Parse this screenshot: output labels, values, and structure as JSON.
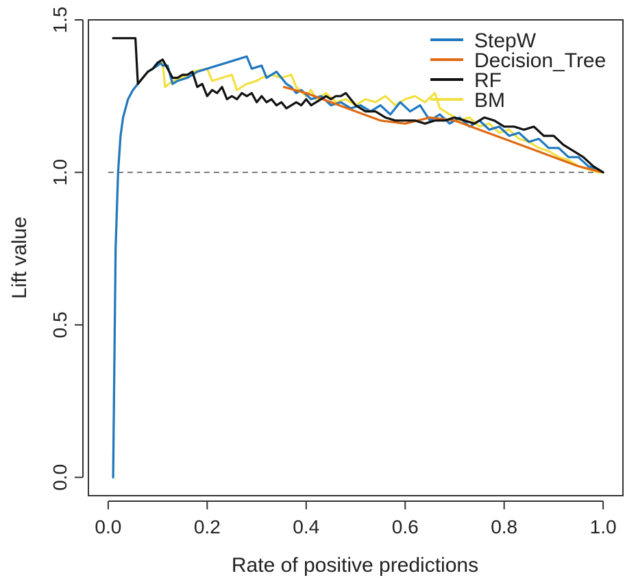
{
  "chart_data": {
    "type": "line",
    "title": "",
    "xlabel": "Rate of positive predictions",
    "ylabel": "Lift value",
    "xlim": [
      -0.04,
      1.04
    ],
    "ylim": [
      -0.06,
      1.5
    ],
    "xticks": [
      "0.0",
      "0.2",
      "0.4",
      "0.6",
      "0.8",
      "1.0"
    ],
    "yticks": [
      "0.0",
      "0.5",
      "1.0",
      "1.5"
    ],
    "legend_position": "top-right",
    "reference_line": {
      "y": 1.0,
      "style": "dashed",
      "color": "#555555"
    },
    "series": [
      {
        "name": "StepW",
        "color": "#1f78c1",
        "x": [
          0.01,
          0.015,
          0.02,
          0.025,
          0.03,
          0.04,
          0.05,
          0.06,
          0.07,
          0.08,
          0.09,
          0.1,
          0.105,
          0.11,
          0.12,
          0.13,
          0.14,
          0.16,
          0.18,
          0.2,
          0.22,
          0.24,
          0.26,
          0.28,
          0.29,
          0.31,
          0.32,
          0.34,
          0.36,
          0.37,
          0.38,
          0.39,
          0.41,
          0.43,
          0.45,
          0.47,
          0.49,
          0.51,
          0.53,
          0.55,
          0.57,
          0.59,
          0.61,
          0.63,
          0.65,
          0.67,
          0.69,
          0.71,
          0.73,
          0.75,
          0.77,
          0.79,
          0.81,
          0.83,
          0.85,
          0.87,
          0.89,
          0.91,
          0.93,
          0.95,
          0.97,
          0.99,
          1.0
        ],
        "values": [
          0.0,
          0.75,
          1.0,
          1.12,
          1.18,
          1.24,
          1.27,
          1.29,
          1.31,
          1.33,
          1.34,
          1.35,
          1.36,
          1.35,
          1.35,
          1.29,
          1.3,
          1.31,
          1.33,
          1.34,
          1.35,
          1.36,
          1.37,
          1.38,
          1.34,
          1.35,
          1.31,
          1.33,
          1.29,
          1.28,
          1.26,
          1.27,
          1.24,
          1.25,
          1.22,
          1.23,
          1.21,
          1.22,
          1.2,
          1.22,
          1.19,
          1.23,
          1.2,
          1.22,
          1.17,
          1.19,
          1.16,
          1.18,
          1.15,
          1.17,
          1.14,
          1.15,
          1.12,
          1.13,
          1.1,
          1.11,
          1.08,
          1.08,
          1.05,
          1.05,
          1.02,
          1.01,
          1.0
        ]
      },
      {
        "name": "Decision_Tree",
        "color": "#e06a14",
        "x": [
          0.355,
          0.4,
          0.45,
          0.5,
          0.55,
          0.6,
          0.65,
          0.7,
          0.75,
          0.8,
          0.85,
          0.9,
          0.95,
          1.0
        ],
        "values": [
          1.28,
          1.26,
          1.23,
          1.2,
          1.17,
          1.16,
          1.18,
          1.17,
          1.14,
          1.11,
          1.08,
          1.05,
          1.02,
          1.0
        ]
      },
      {
        "name": "RF",
        "color": "#111111",
        "x": [
          0.01,
          0.055,
          0.06,
          0.07,
          0.08,
          0.09,
          0.1,
          0.11,
          0.12,
          0.13,
          0.14,
          0.15,
          0.16,
          0.17,
          0.18,
          0.19,
          0.2,
          0.21,
          0.22,
          0.23,
          0.24,
          0.25,
          0.26,
          0.27,
          0.28,
          0.29,
          0.3,
          0.31,
          0.32,
          0.33,
          0.34,
          0.35,
          0.36,
          0.37,
          0.38,
          0.39,
          0.4,
          0.41,
          0.42,
          0.43,
          0.44,
          0.45,
          0.46,
          0.47,
          0.48,
          0.5,
          0.52,
          0.54,
          0.56,
          0.58,
          0.6,
          0.62,
          0.64,
          0.66,
          0.68,
          0.7,
          0.72,
          0.74,
          0.76,
          0.78,
          0.8,
          0.82,
          0.84,
          0.86,
          0.88,
          0.9,
          0.92,
          0.94,
          0.96,
          0.98,
          1.0
        ],
        "values": [
          1.44,
          1.44,
          1.29,
          1.31,
          1.33,
          1.34,
          1.36,
          1.37,
          1.34,
          1.31,
          1.31,
          1.32,
          1.32,
          1.33,
          1.28,
          1.29,
          1.25,
          1.27,
          1.26,
          1.28,
          1.24,
          1.25,
          1.24,
          1.26,
          1.25,
          1.26,
          1.23,
          1.25,
          1.23,
          1.24,
          1.22,
          1.23,
          1.21,
          1.22,
          1.23,
          1.22,
          1.24,
          1.22,
          1.23,
          1.24,
          1.25,
          1.24,
          1.25,
          1.25,
          1.26,
          1.22,
          1.2,
          1.2,
          1.18,
          1.17,
          1.17,
          1.17,
          1.16,
          1.17,
          1.17,
          1.18,
          1.17,
          1.16,
          1.18,
          1.17,
          1.15,
          1.15,
          1.14,
          1.15,
          1.12,
          1.12,
          1.09,
          1.07,
          1.05,
          1.02,
          1.0
        ]
      },
      {
        "name": "BM",
        "color": "#f2e040",
        "x": [
          0.01,
          0.015,
          0.02,
          0.025,
          0.03,
          0.04,
          0.05,
          0.06,
          0.07,
          0.08,
          0.09,
          0.1,
          0.11,
          0.115,
          0.13,
          0.15,
          0.17,
          0.2,
          0.21,
          0.23,
          0.25,
          0.26,
          0.28,
          0.3,
          0.31,
          0.33,
          0.35,
          0.37,
          0.38,
          0.4,
          0.41,
          0.42,
          0.44,
          0.46,
          0.48,
          0.5,
          0.52,
          0.54,
          0.56,
          0.58,
          0.6,
          0.62,
          0.64,
          0.66,
          0.67,
          0.69,
          0.71,
          0.73,
          0.75,
          0.77,
          0.79,
          0.81,
          0.83,
          0.85,
          0.87,
          0.89,
          0.91,
          0.93,
          0.95,
          0.97,
          0.99,
          1.0
        ],
        "values": [
          0.0,
          0.75,
          1.0,
          1.12,
          1.18,
          1.24,
          1.27,
          1.29,
          1.31,
          1.33,
          1.34,
          1.35,
          1.36,
          1.28,
          1.3,
          1.31,
          1.33,
          1.34,
          1.3,
          1.31,
          1.32,
          1.27,
          1.29,
          1.3,
          1.31,
          1.32,
          1.31,
          1.32,
          1.28,
          1.25,
          1.27,
          1.24,
          1.26,
          1.23,
          1.24,
          1.22,
          1.24,
          1.23,
          1.25,
          1.22,
          1.24,
          1.25,
          1.23,
          1.26,
          1.21,
          1.19,
          1.17,
          1.18,
          1.15,
          1.16,
          1.13,
          1.14,
          1.11,
          1.1,
          1.08,
          1.07,
          1.05,
          1.04,
          1.02,
          1.01,
          1.0,
          1.0
        ]
      }
    ]
  }
}
